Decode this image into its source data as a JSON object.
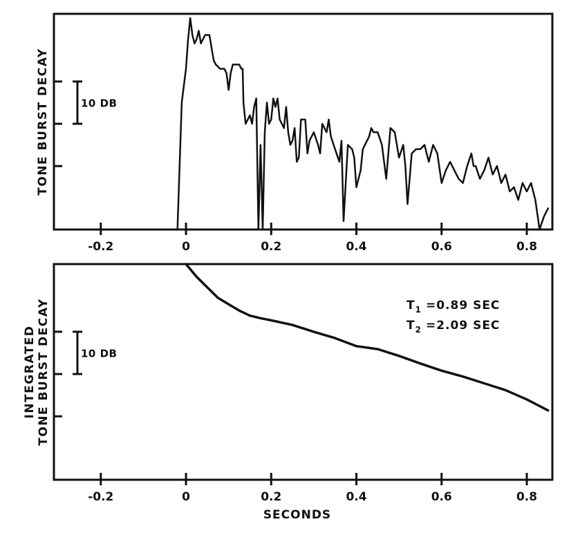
{
  "chart_data": [
    {
      "type": "line",
      "ylabel": "TONE BURST DECAY",
      "scale_bar_label": "10 DB",
      "x_ticks": [
        -0.2,
        0,
        0.2,
        0.4,
        0.6,
        0.8
      ],
      "x_tick_labels": [
        "-0.2",
        "0",
        "0.2",
        "0.4",
        "0.6",
        "0.8"
      ],
      "xlim": [
        -0.31,
        0.86
      ],
      "ylim_db": [
        -40,
        11
      ],
      "y_gridticks_db": [
        -25,
        -15,
        -5
      ],
      "scale_bar_db": [
        -15,
        -5
      ],
      "series": [
        {
          "x": [
            -0.02,
            -0.015,
            -0.01,
            0.0,
            0.005,
            0.01,
            0.015,
            0.02,
            0.025,
            0.03,
            0.035,
            0.045,
            0.055,
            0.06,
            0.065,
            0.07,
            0.08,
            0.09,
            0.095,
            0.1,
            0.105,
            0.11,
            0.12,
            0.125,
            0.13,
            0.133,
            0.135,
            0.14,
            0.15,
            0.155,
            0.16,
            0.165,
            0.17,
            0.175,
            0.18,
            0.185,
            0.19,
            0.195,
            0.2,
            0.205,
            0.21,
            0.215,
            0.22,
            0.225,
            0.23,
            0.235,
            0.24,
            0.245,
            0.25,
            0.255,
            0.26,
            0.265,
            0.27,
            0.28,
            0.285,
            0.29,
            0.3,
            0.31,
            0.315,
            0.32,
            0.33,
            0.335,
            0.34,
            0.35,
            0.36,
            0.365,
            0.37,
            0.38,
            0.39,
            0.395,
            0.4,
            0.41,
            0.415,
            0.42,
            0.43,
            0.435,
            0.44,
            0.45,
            0.46,
            0.47,
            0.48,
            0.49,
            0.5,
            0.51,
            0.515,
            0.52,
            0.53,
            0.54,
            0.55,
            0.56,
            0.57,
            0.58,
            0.59,
            0.6,
            0.61,
            0.62,
            0.63,
            0.64,
            0.65,
            0.66,
            0.67,
            0.675,
            0.68,
            0.69,
            0.7,
            0.71,
            0.72,
            0.73,
            0.74,
            0.75,
            0.76,
            0.77,
            0.78,
            0.79,
            0.8,
            0.81,
            0.82,
            0.83,
            0.84,
            0.85
          ],
          "y": [
            -40,
            -25,
            -10,
            -2,
            5,
            10,
            6,
            4,
            5,
            7,
            4,
            6,
            6,
            3,
            0,
            -1,
            -2,
            -2,
            -3,
            -7,
            -3,
            -1,
            -1,
            -1,
            -2,
            -2,
            -10,
            -15,
            -13,
            -15,
            -11,
            -9,
            -40,
            -20,
            -40,
            -17,
            -10,
            -15,
            -14,
            -9,
            -11,
            -9,
            -14,
            -15,
            -16,
            -11,
            -17,
            -20,
            -19,
            -16,
            -24,
            -23,
            -14,
            -14,
            -22,
            -19,
            -17,
            -20,
            -22,
            -15,
            -17,
            -14,
            -18,
            -21,
            -24,
            -19,
            -38,
            -20,
            -21,
            -23,
            -30,
            -26,
            -21,
            -20,
            -18,
            -16,
            -17,
            -17,
            -20,
            -28,
            -16,
            -17,
            -23,
            -20,
            -25,
            -34,
            -22,
            -21,
            -21,
            -20,
            -24,
            -20,
            -22,
            -29,
            -26,
            -24,
            -26,
            -28,
            -29,
            -25,
            -22,
            -25,
            -25,
            -28,
            -26,
            -23,
            -27,
            -25,
            -29,
            -27,
            -31,
            -30,
            -33,
            -29,
            -31,
            -29,
            -33,
            -40,
            -37,
            -35
          ]
        }
      ]
    },
    {
      "type": "line",
      "ylabel_lines": [
        "INTEGRATED",
        "TONE BURST DECAY"
      ],
      "xlabel": "SECONDS",
      "scale_bar_label": "10 DB",
      "annotations": {
        "t1_symbol": "T",
        "t1_subscript": "1",
        "t1_text": "=0.89 SEC",
        "t2_symbol": "T",
        "t2_subscript": "2",
        "t2_text": "=2.09 SEC"
      },
      "x_ticks": [
        -0.2,
        0,
        0.2,
        0.4,
        0.6,
        0.8
      ],
      "x_tick_labels": [
        "-0.2",
        "0",
        "0.2",
        "0.4",
        "0.6",
        "0.8"
      ],
      "xlim": [
        -0.31,
        0.86
      ],
      "ylim_db": [
        -40,
        11
      ],
      "y_gridticks_db": [
        -25,
        -15,
        -5
      ],
      "scale_bar_db": [
        -15,
        -5
      ],
      "series": [
        {
          "x": [
            0.0,
            0.025,
            0.05,
            0.075,
            0.1,
            0.125,
            0.15,
            0.175,
            0.2,
            0.25,
            0.3,
            0.35,
            0.4,
            0.45,
            0.5,
            0.55,
            0.6,
            0.65,
            0.7,
            0.75,
            0.8,
            0.85
          ],
          "y": [
            11,
            8,
            5.5,
            3,
            1.5,
            0,
            -1.2,
            -1.8,
            -2.3,
            -3.4,
            -5,
            -6.5,
            -8.4,
            -9.1,
            -10.7,
            -12.5,
            -14.2,
            -15.6,
            -17.2,
            -18.8,
            -21,
            -23.6
          ]
        }
      ]
    }
  ]
}
